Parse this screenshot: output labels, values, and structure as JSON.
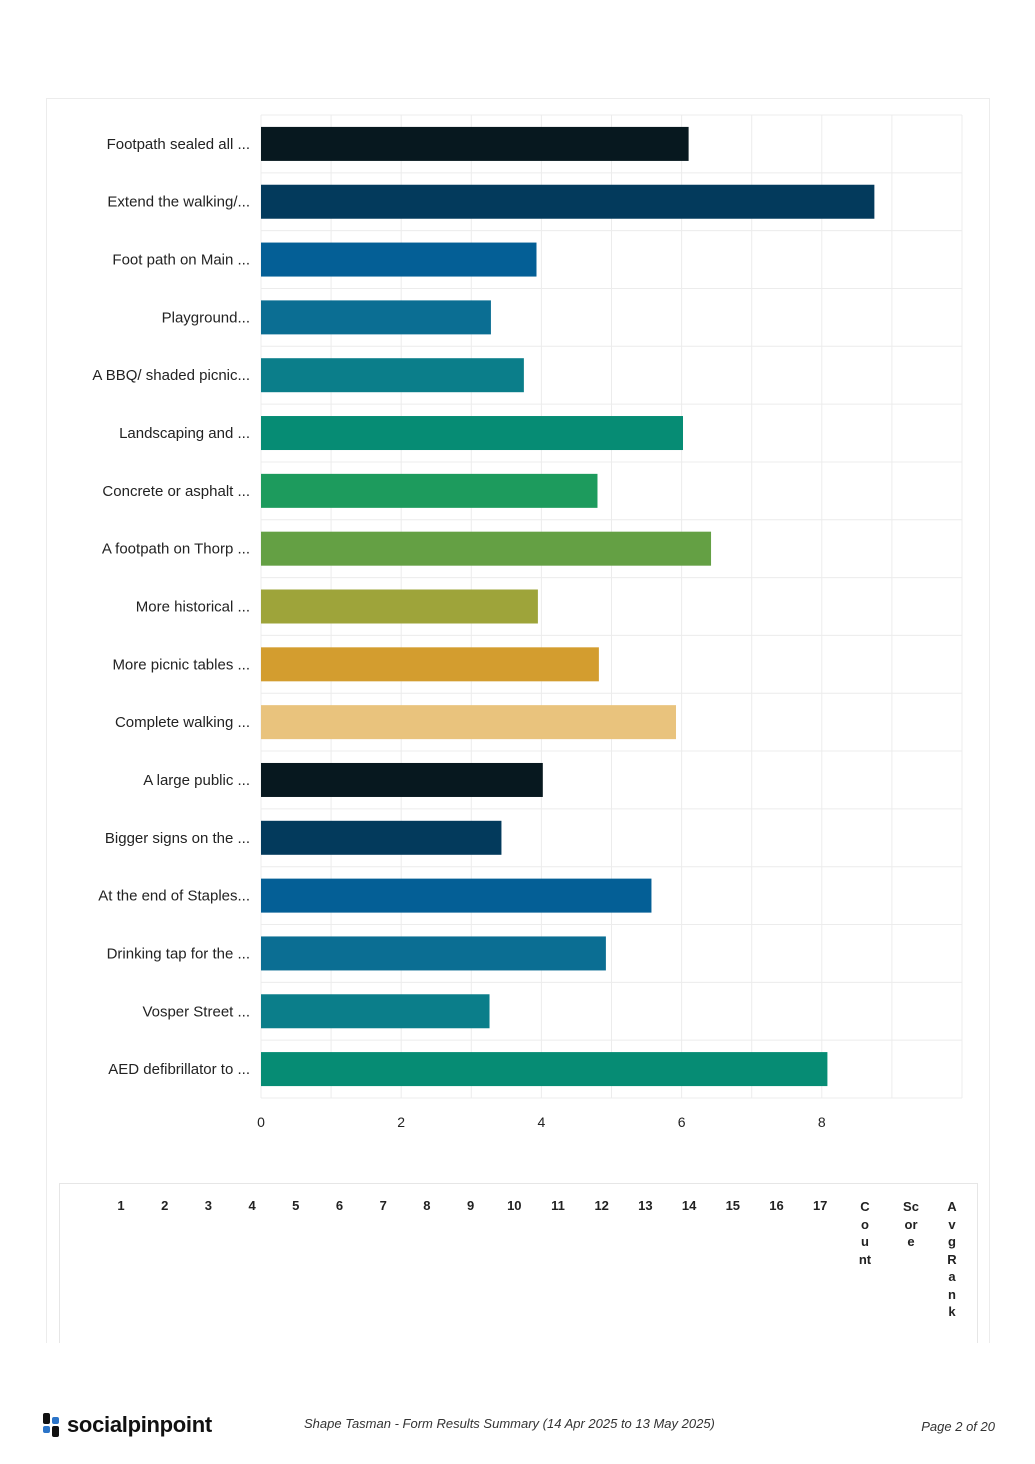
{
  "chart_data": {
    "type": "bar",
    "orientation": "horizontal",
    "categories": [
      "Footpath sealed all ...",
      "Extend the walking/...",
      "Foot path on Main ...",
      "Playground...",
      "A BBQ/ shaded picnic...",
      "Landscaping and ...",
      "Concrete or asphalt ...",
      "A footpath on Thorp ...",
      "More historical ...",
      "More picnic tables ...",
      "Complete walking ...",
      "A large public ...",
      "Bigger signs on the ...",
      "At the end of Staples...",
      "Drinking tap for the ...",
      "Vosper Street ...",
      "AED defibrillator to ..."
    ],
    "values": [
      6.1,
      8.75,
      3.93,
      3.28,
      3.75,
      6.02,
      4.8,
      6.42,
      3.95,
      4.82,
      5.92,
      4.02,
      3.43,
      5.57,
      4.92,
      3.26,
      8.08
    ],
    "colors": [
      "#07181f",
      "#033a5c",
      "#045f96",
      "#0b6e93",
      "#0b7e8a",
      "#068c74",
      "#1d9b5d",
      "#64a044",
      "#9ea43a",
      "#d39d2f",
      "#e9c37d",
      "#07181f",
      "#033a5c",
      "#045f96",
      "#0b6e93",
      "#0b7e8a",
      "#068c74"
    ],
    "xticks": [
      "0",
      "2",
      "4",
      "6",
      "8"
    ],
    "xlim": [
      0,
      10
    ],
    "grid": true
  },
  "ranking_table": {
    "headers": [
      "1",
      "2",
      "3",
      "4",
      "5",
      "6",
      "7",
      "8",
      "9",
      "10",
      "11",
      "12",
      "13",
      "14",
      "15",
      "16",
      "17"
    ],
    "count_header": "Count",
    "score_header": "Score",
    "avg_rank_header": "AvgRank"
  },
  "footer": {
    "logo_text": "socialpinpoint",
    "summary": "Shape Tasman - Form Results Summary (14 Apr 2025 to 13 May 2025)",
    "page": "Page 2 of 20"
  }
}
